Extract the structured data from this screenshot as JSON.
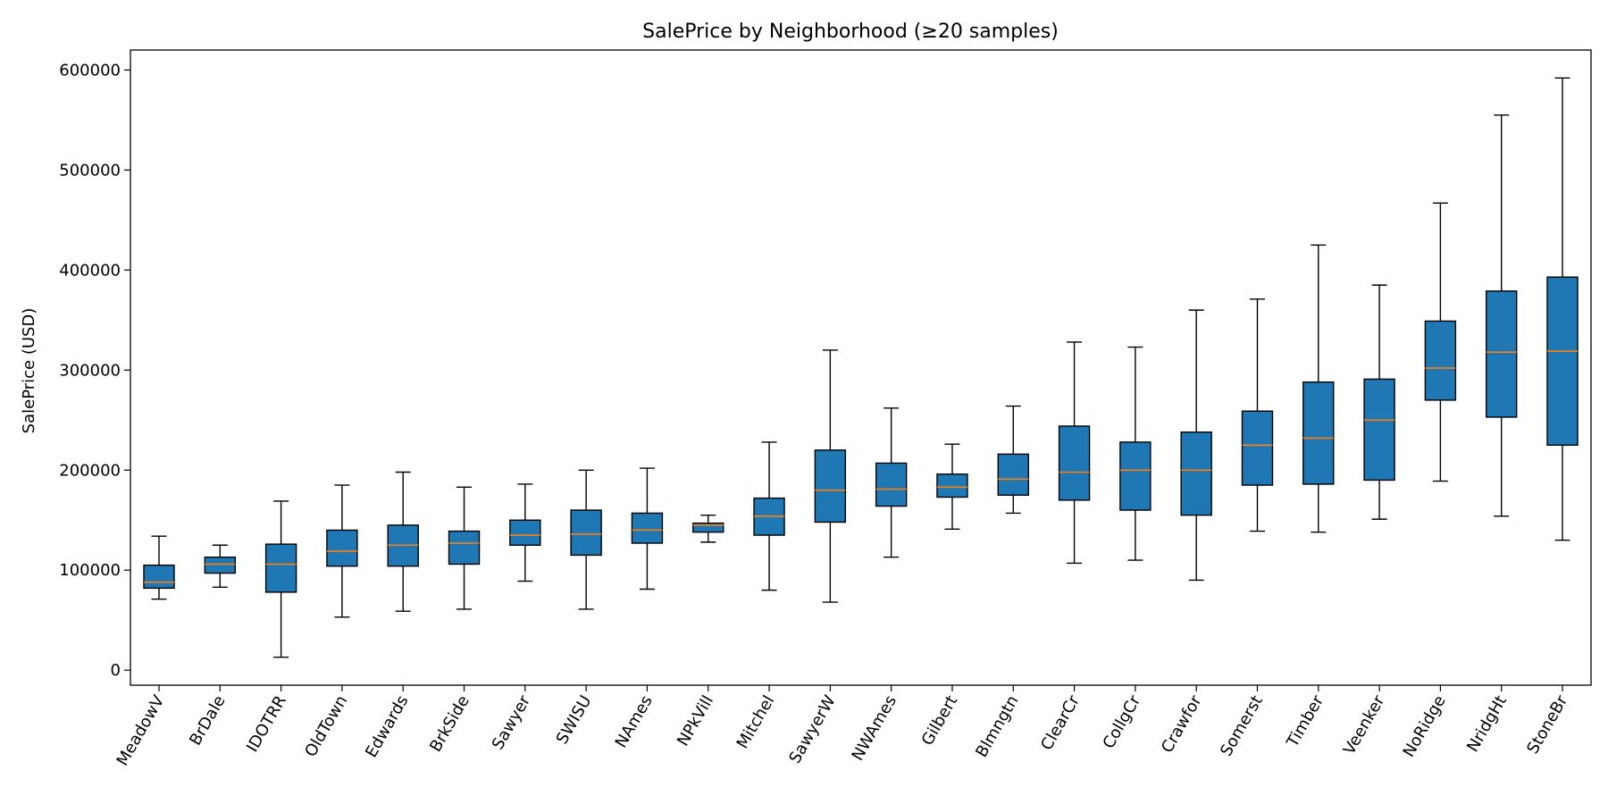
{
  "chart_data": {
    "type": "box",
    "title": "SalePrice by Neighborhood (≥20 samples)",
    "xlabel": "",
    "ylabel": "SalePrice (USD)",
    "ylim": [
      -15000,
      620000
    ],
    "yticks": [
      0,
      100000,
      200000,
      300000,
      400000,
      500000,
      600000
    ],
    "ytick_labels": [
      "0",
      "100000",
      "200000",
      "300000",
      "400000",
      "500000",
      "600000"
    ],
    "box_color": "#1f77b4",
    "median_color": "#ff7f0e",
    "categories": [
      "MeadowV",
      "BrDale",
      "IDOTRR",
      "OldTown",
      "Edwards",
      "BrkSide",
      "Sawyer",
      "SWISU",
      "NAmes",
      "NPkVill",
      "Mitchel",
      "SawyerW",
      "NWAmes",
      "Gilbert",
      "Blmngtn",
      "ClearCr",
      "CollgCr",
      "Crawfor",
      "Somerst",
      "Timber",
      "Veenker",
      "NoRidge",
      "NridgHt",
      "StoneBr"
    ],
    "boxes": [
      {
        "whislo": 71000,
        "q1": 82000,
        "med": 88000,
        "q3": 105000,
        "whishi": 134000
      },
      {
        "whislo": 83000,
        "q1": 97000,
        "med": 106000,
        "q3": 113000,
        "whishi": 125000
      },
      {
        "whislo": 13000,
        "q1": 78000,
        "med": 106000,
        "q3": 126000,
        "whishi": 169000
      },
      {
        "whislo": 53000,
        "q1": 104000,
        "med": 119000,
        "q3": 140000,
        "whishi": 185000
      },
      {
        "whislo": 59000,
        "q1": 104000,
        "med": 125000,
        "q3": 145000,
        "whishi": 198000
      },
      {
        "whislo": 61000,
        "q1": 106000,
        "med": 127000,
        "q3": 139000,
        "whishi": 183000
      },
      {
        "whislo": 89000,
        "q1": 125000,
        "med": 135000,
        "q3": 150000,
        "whishi": 186000
      },
      {
        "whislo": 61000,
        "q1": 115000,
        "med": 136000,
        "q3": 160000,
        "whishi": 200000
      },
      {
        "whislo": 81000,
        "q1": 127000,
        "med": 140000,
        "q3": 157000,
        "whishi": 202000
      },
      {
        "whislo": 128000,
        "q1": 138000,
        "med": 145000,
        "q3": 147000,
        "whishi": 155000
      },
      {
        "whislo": 80000,
        "q1": 135000,
        "med": 154000,
        "q3": 172000,
        "whishi": 228000
      },
      {
        "whislo": 68000,
        "q1": 148000,
        "med": 180000,
        "q3": 220000,
        "whishi": 320000
      },
      {
        "whislo": 113000,
        "q1": 164000,
        "med": 181000,
        "q3": 207000,
        "whishi": 262000
      },
      {
        "whislo": 141000,
        "q1": 173000,
        "med": 183000,
        "q3": 196000,
        "whishi": 226000
      },
      {
        "whislo": 157000,
        "q1": 175000,
        "med": 191000,
        "q3": 216000,
        "whishi": 264000
      },
      {
        "whislo": 107000,
        "q1": 170000,
        "med": 198000,
        "q3": 244000,
        "whishi": 328000
      },
      {
        "whislo": 110000,
        "q1": 160000,
        "med": 200000,
        "q3": 228000,
        "whishi": 323000
      },
      {
        "whislo": 90000,
        "q1": 155000,
        "med": 200000,
        "q3": 238000,
        "whishi": 360000
      },
      {
        "whislo": 139000,
        "q1": 185000,
        "med": 225000,
        "q3": 259000,
        "whishi": 371000
      },
      {
        "whislo": 138000,
        "q1": 186000,
        "med": 232000,
        "q3": 288000,
        "whishi": 425000
      },
      {
        "whislo": 151000,
        "q1": 190000,
        "med": 250000,
        "q3": 291000,
        "whishi": 385000
      },
      {
        "whislo": 189000,
        "q1": 270000,
        "med": 302000,
        "q3": 349000,
        "whishi": 467000
      },
      {
        "whislo": 154000,
        "q1": 253000,
        "med": 318000,
        "q3": 379000,
        "whishi": 555000
      },
      {
        "whislo": 130000,
        "q1": 225000,
        "med": 319000,
        "q3": 393000,
        "whishi": 592000
      }
    ]
  }
}
